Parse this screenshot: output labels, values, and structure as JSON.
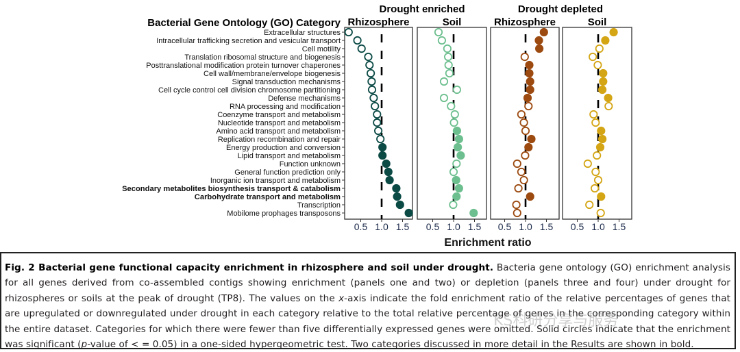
{
  "chart_data": {
    "type": "scatter",
    "ylabel": "Bacterial Gene Ontology (GO) Category",
    "xlabel": "Enrichment ratio",
    "xlim": [
      0.2,
      1.8
    ],
    "xticks": [
      "0.5",
      "1.0",
      "1.5"
    ],
    "reference_line": 1.0,
    "groups": [
      "Drought enriched",
      "Drought depleted"
    ],
    "categories": [
      "Extracellular structures",
      "Intracellular trafficking secretion and vesicular transport",
      "Cell motility",
      "Translation ribosomal structure and biogenesis",
      "Posttranslational modification protein turnover chaperones",
      "Cell wall/membrane/envelope biogenesis",
      "Signal transduction mechanisms",
      "Cell cycle control cell division chromosome partitioning",
      "Defense mechanisms",
      "RNA processing and modification",
      "Coenzyme transport and metabolism",
      "Nucleotide transport and metabolism",
      "Amino acid transport and metabolism",
      "Replication recombination and repair",
      "Energy production and conversion",
      "Lipid transport and metabolism",
      "Function unknown",
      "General function prediction only",
      "Inorganic ion transport and metabolism",
      "Secondary metabolites biosynthesis transport & catabolism",
      "Carbohydrate transport and metabolism",
      "Transcription",
      "Mobilome prophages transposons"
    ],
    "bold_categories": [
      19,
      20
    ],
    "panels": [
      {
        "group": "Drought enriched",
        "name": "Rhizosphere",
        "color": "#0b4a45",
        "values": [
          0.21,
          0.42,
          0.52,
          0.68,
          0.71,
          0.74,
          0.76,
          0.77,
          0.81,
          0.84,
          0.89,
          0.89,
          0.92,
          0.97,
          1.02,
          1.02,
          1.11,
          1.16,
          1.19,
          1.35,
          1.37,
          1.44,
          1.65
        ],
        "significant": [
          0,
          0,
          0,
          0,
          0,
          0,
          0,
          0,
          0,
          0,
          0,
          0,
          0,
          0,
          1,
          1,
          1,
          1,
          1,
          1,
          1,
          1,
          1
        ]
      },
      {
        "group": "Drought enriched",
        "name": "Soil",
        "color": "#6dbf8f",
        "values": [
          0.64,
          0.72,
          0.85,
          0.87,
          0.88,
          0.9,
          0.77,
          1.08,
          0.77,
          0.94,
          1.03,
          1.01,
          1.08,
          1.13,
          1.1,
          1.17,
          1.07,
          1.0,
          1.06,
          1.13,
          1.07,
          0.99,
          1.48
        ],
        "significant": [
          0,
          0,
          0,
          0,
          0,
          0,
          0,
          0,
          0,
          0,
          0,
          0,
          1,
          1,
          1,
          1,
          0,
          0,
          1,
          1,
          1,
          0,
          1
        ]
      },
      {
        "group": "Drought depleted",
        "name": "Rhizosphere",
        "color": "#9c4a10",
        "values": [
          1.44,
          1.32,
          1.33,
          0.98,
          1.09,
          1.09,
          1.11,
          1.11,
          1.05,
          1.07,
          0.9,
          0.96,
          1.0,
          1.14,
          1.07,
          0.99,
          0.8,
          0.9,
          0.96,
          0.83,
          1.11,
          0.78,
          0.8
        ],
        "significant": [
          1,
          1,
          1,
          0,
          1,
          1,
          1,
          1,
          1,
          0,
          0,
          0,
          0,
          1,
          1,
          0,
          0,
          0,
          0,
          0,
          1,
          0,
          0
        ]
      },
      {
        "group": "Drought depleted",
        "name": "Soil",
        "color": "#d4a514",
        "values": [
          1.37,
          1.17,
          1.03,
          0.87,
          0.99,
          1.12,
          1.12,
          1.1,
          1.24,
          1.25,
          0.89,
          0.94,
          1.07,
          1.1,
          1.05,
          0.97,
          0.75,
          0.94,
          1.0,
          0.92,
          1.07,
          0.79,
          1.06
        ],
        "significant": [
          1,
          1,
          0,
          0,
          0,
          1,
          1,
          1,
          1,
          0,
          0,
          0,
          1,
          1,
          1,
          0,
          0,
          0,
          0,
          0,
          1,
          0,
          0
        ]
      }
    ],
    "grid": false,
    "legend": "none"
  },
  "caption": {
    "title": "Fig. 2 Bacterial gene functional capacity enrichment in rhizosphere and soil under drought.",
    "body_1": " Bacteria gene ontology (GO) enrichment analysis for all genes derived from co-assembled contigs showing enrichment (panels one and two) or depletion (panels three and four) under drought for rhizospheres or soils at the peak of drought (TP8). The values on the ",
    "x_italic": "x",
    "body_2": "-axis indicate the fold enrichment ratio of the relative percentages of genes that are upregulated or downregulated under drought in each category relative to the total relative percentage of genes in the corresponding category within the entire dataset. Categories for which there were fewer than five differentially expressed genes were omitted. Solid circles indicate that the enrichment was significant (",
    "p_italic": "p",
    "body_3": "-value of < = 0.05) in a one-sided hypergeometric test. Two categories discussed in more detail in the Results are shown in bold."
  },
  "watermark": "KS科研分享与服务"
}
